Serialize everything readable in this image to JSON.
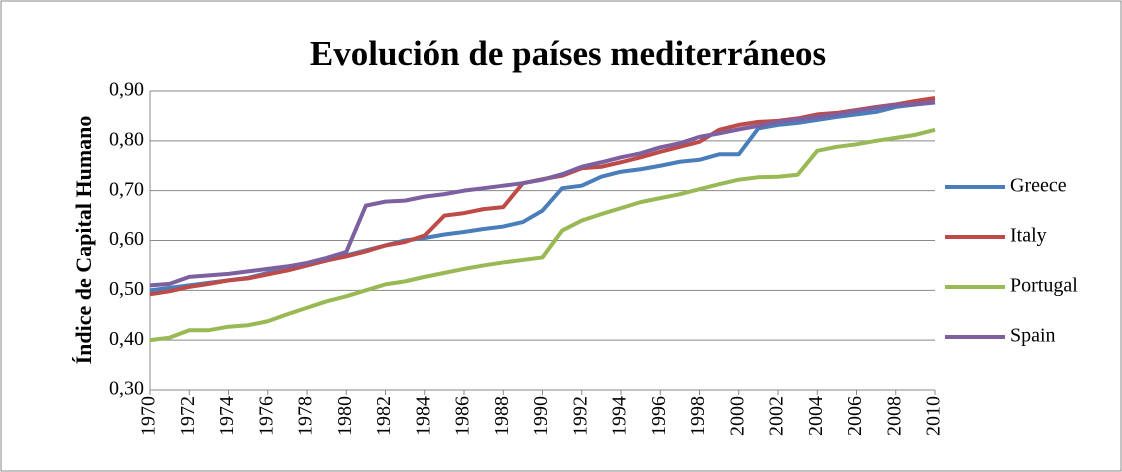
{
  "chart_data": {
    "type": "line",
    "title": "Evolución de países mediterráneos",
    "y_label": "Índice de Capital Humano",
    "x": [
      1970,
      1971,
      1972,
      1973,
      1974,
      1975,
      1976,
      1977,
      1978,
      1979,
      1980,
      1981,
      1982,
      1983,
      1984,
      1985,
      1986,
      1987,
      1988,
      1989,
      1990,
      1991,
      1992,
      1993,
      1994,
      1995,
      1996,
      1997,
      1998,
      1999,
      2000,
      2001,
      2002,
      2003,
      2004,
      2005,
      2006,
      2007,
      2008,
      2009,
      2010
    ],
    "xlim": [
      1970,
      2010
    ],
    "xticks": [
      1970,
      1972,
      1974,
      1976,
      1978,
      1980,
      1982,
      1984,
      1986,
      1988,
      1990,
      1992,
      1994,
      1996,
      1998,
      2000,
      2002,
      2004,
      2006,
      2008,
      2010
    ],
    "ylim": [
      0.3,
      0.9
    ],
    "yticks": [
      {
        "value": 0.3,
        "label": "0,30"
      },
      {
        "value": 0.4,
        "label": "0,40"
      },
      {
        "value": 0.5,
        "label": "0,50"
      },
      {
        "value": 0.6,
        "label": "0,60"
      },
      {
        "value": 0.7,
        "label": "0,70"
      },
      {
        "value": 0.8,
        "label": "0,80"
      },
      {
        "value": 0.9,
        "label": "0,90"
      }
    ],
    "grid": true,
    "legend": "right",
    "series": [
      {
        "name": "Greece",
        "color": "#4a7ebb",
        "values": [
          0.5,
          0.505,
          0.51,
          0.515,
          0.52,
          0.525,
          0.535,
          0.54,
          0.55,
          0.56,
          0.57,
          0.58,
          0.59,
          0.6,
          0.605,
          0.612,
          0.617,
          0.623,
          0.628,
          0.637,
          0.66,
          0.705,
          0.71,
          0.728,
          0.738,
          0.743,
          0.75,
          0.758,
          0.762,
          0.773,
          0.773,
          0.825,
          0.832,
          0.836,
          0.842,
          0.848,
          0.853,
          0.858,
          0.868,
          0.873,
          0.877
        ]
      },
      {
        "name": "Italy",
        "color": "#be4b48",
        "values": [
          0.492,
          0.498,
          0.507,
          0.513,
          0.52,
          0.524,
          0.532,
          0.54,
          0.55,
          0.56,
          0.568,
          0.578,
          0.59,
          0.597,
          0.61,
          0.65,
          0.655,
          0.663,
          0.667,
          0.715,
          0.723,
          0.73,
          0.745,
          0.748,
          0.757,
          0.767,
          0.778,
          0.788,
          0.798,
          0.822,
          0.832,
          0.838,
          0.84,
          0.845,
          0.853,
          0.856,
          0.862,
          0.868,
          0.873,
          0.88,
          0.886
        ]
      },
      {
        "name": "Portugal",
        "color": "#98b954",
        "values": [
          0.4,
          0.405,
          0.42,
          0.42,
          0.427,
          0.43,
          0.438,
          0.452,
          0.465,
          0.478,
          0.488,
          0.5,
          0.512,
          0.518,
          0.527,
          0.535,
          0.543,
          0.55,
          0.556,
          0.561,
          0.566,
          0.62,
          0.64,
          0.653,
          0.665,
          0.677,
          0.685,
          0.693,
          0.703,
          0.713,
          0.722,
          0.727,
          0.728,
          0.732,
          0.78,
          0.788,
          0.793,
          0.8,
          0.806,
          0.812,
          0.822
        ]
      },
      {
        "name": "Spain",
        "color": "#7d60a0",
        "values": [
          0.51,
          0.513,
          0.527,
          0.53,
          0.533,
          0.538,
          0.543,
          0.548,
          0.555,
          0.565,
          0.577,
          0.67,
          0.678,
          0.68,
          0.688,
          0.693,
          0.7,
          0.705,
          0.71,
          0.715,
          0.722,
          0.733,
          0.748,
          0.757,
          0.767,
          0.775,
          0.787,
          0.795,
          0.808,
          0.815,
          0.823,
          0.83,
          0.838,
          0.843,
          0.848,
          0.853,
          0.86,
          0.866,
          0.872,
          0.874,
          0.878
        ]
      }
    ]
  }
}
